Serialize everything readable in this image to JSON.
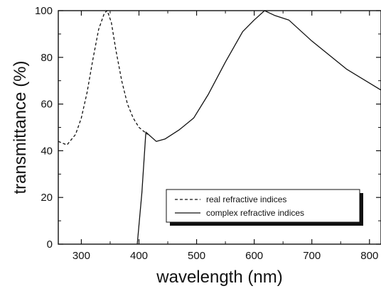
{
  "chart_data": {
    "type": "line",
    "xlabel": "wavelength (nm)",
    "ylabel": "transmittance (%)",
    "xlim": [
      260,
      820
    ],
    "ylim": [
      0,
      100
    ],
    "xticks": [
      300,
      400,
      500,
      600,
      700,
      800
    ],
    "yticks": [
      0,
      20,
      40,
      60,
      80,
      100
    ],
    "grid": false,
    "legend_position": "bottom-right",
    "series": [
      {
        "name": "real refractive indices",
        "line_style": "dashed",
        "color": "#111111",
        "x": [
          260,
          275,
          290,
          300,
          310,
          320,
          330,
          340,
          345,
          352,
          360,
          370,
          380,
          390,
          400,
          410,
          415
        ],
        "y": [
          44,
          42.5,
          47,
          54,
          65,
          79,
          92,
          99,
          100,
          95,
          83,
          70,
          60,
          54,
          50,
          48,
          47
        ]
      },
      {
        "name": "complex refractive indices",
        "line_style": "solid",
        "color": "#111111",
        "x": [
          397,
          405,
          412,
          430,
          445,
          470,
          495,
          520,
          550,
          580,
          600,
          618,
          635,
          660,
          700,
          760,
          820
        ],
        "y": [
          0,
          22,
          48,
          44,
          45,
          49,
          54,
          64,
          78,
          91,
          96,
          100,
          98,
          96,
          87,
          75,
          66
        ]
      }
    ]
  }
}
